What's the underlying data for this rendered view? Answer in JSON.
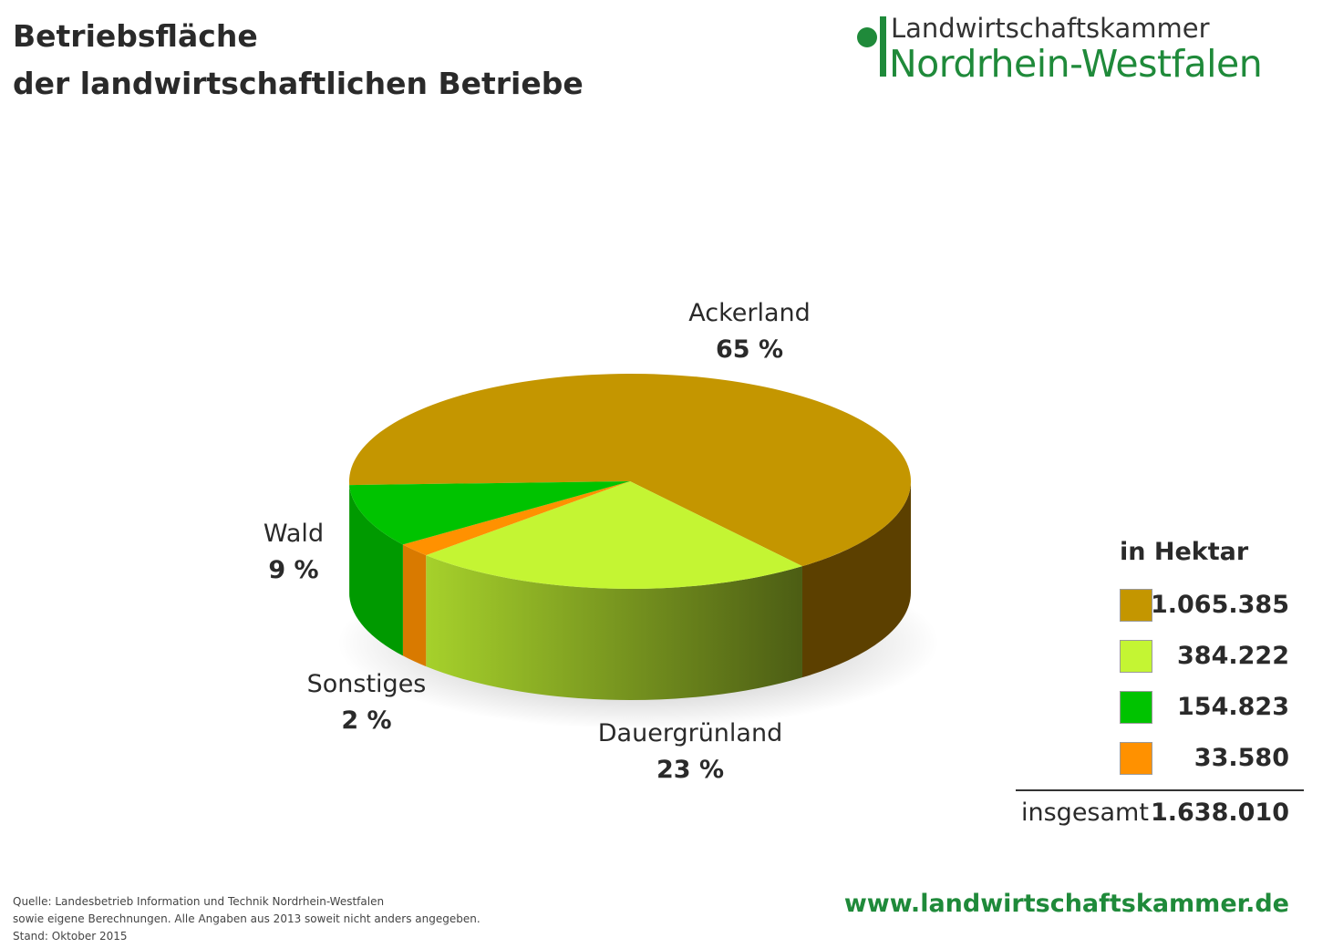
{
  "title_lines": [
    "Betriebsfläche",
    "der landwirtschaftlichen Betriebe"
  ],
  "logo": {
    "line1": "Landwirtschaftskammer",
    "line2": "Nordrhein-Westfalen",
    "color": "#1f8a3a"
  },
  "chart_data": {
    "type": "pie",
    "style": "3d",
    "unit": "in Hektar",
    "slices": [
      {
        "name": "Ackerland",
        "percent_label": "65 %",
        "value": 1065385,
        "value_label": "1.065.385",
        "color": "#c49600",
        "side_color": "#5c4000"
      },
      {
        "name": "Dauergrünland",
        "percent_label": "23 %",
        "value": 384222,
        "value_label": "384.222",
        "color": "#c4f533",
        "side_color": "#4c5d14"
      },
      {
        "name": "Wald",
        "percent_label": "9 %",
        "value": 154823,
        "value_label": "154.823",
        "color": "#00c300",
        "side_color": "#009a00"
      },
      {
        "name": "Sonstiges",
        "percent_label": "2 %",
        "value": 33580,
        "value_label": "33.580",
        "color": "#ff9100",
        "side_color": "#d97a00"
      }
    ],
    "total_label": "insgesamt",
    "total_value_label": "1.638.010",
    "legend_placement": "right"
  },
  "source_lines": [
    "Quelle: Landesbetrieb Information und Technik Nordrhein-Westfalen",
    "sowie eigene Berechnungen. Alle Angaben aus 2013 soweit nicht anders angegeben.",
    "Stand: Oktober 2015"
  ],
  "url": "www.landwirtschaftskammer.de"
}
